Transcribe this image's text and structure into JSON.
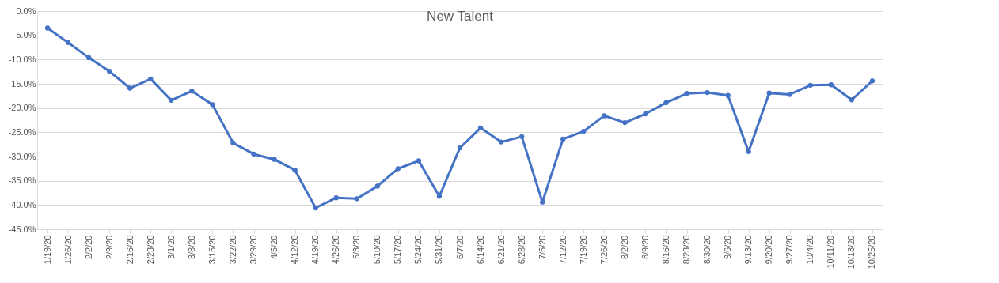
{
  "chart_data": {
    "type": "line",
    "title": "New Talent",
    "categories": [
      "1/19/20",
      "1/26/20",
      "2/2/20",
      "2/9/20",
      "2/16/20",
      "2/23/20",
      "3/1/20",
      "3/8/20",
      "3/15/20",
      "3/22/20",
      "3/29/20",
      "4/5/20",
      "4/12/20",
      "4/19/20",
      "4/26/20",
      "5/3/20",
      "5/10/20",
      "5/17/20",
      "5/24/20",
      "5/31/20",
      "6/7/20",
      "6/14/20",
      "6/21/20",
      "6/28/20",
      "7/5/20",
      "7/12/20",
      "7/19/20",
      "7/26/20",
      "8/2/20",
      "8/9/20",
      "8/16/20",
      "8/23/20",
      "8/30/20",
      "9/6/20",
      "9/13/20",
      "9/20/20",
      "9/27/20",
      "10/4/20",
      "10/11/20",
      "10/18/20",
      "10/25/20"
    ],
    "series": [
      {
        "color": "#4472c4",
        "values": [
          -3.5,
          -6.5,
          -9.6,
          -12.4,
          -15.9,
          -14.0,
          -18.4,
          -16.5,
          -19.3,
          -27.2,
          -29.5,
          -30.6,
          -32.8,
          -40.6,
          -38.5,
          -38.7,
          -36.1,
          -32.5,
          -30.9,
          -38.2,
          -28.2,
          -24.1,
          -27.0,
          -25.9,
          -39.4,
          -26.4,
          -24.8,
          -21.6,
          -23.0,
          -21.2,
          -18.9,
          -17.0,
          -16.8,
          -17.4,
          -29.0,
          -16.9,
          -17.2,
          -15.3,
          -15.2,
          -18.3,
          -14.4
        ]
      }
    ],
    "ylim": [
      -45,
      0
    ],
    "yticks": [
      {
        "value": 0,
        "label": "0.0%"
      },
      {
        "value": -5,
        "label": "-5.0%"
      },
      {
        "value": -10,
        "label": "-10.0%"
      },
      {
        "value": -15,
        "label": "-15.0%"
      },
      {
        "value": -20,
        "label": "-20.0%"
      },
      {
        "value": -25,
        "label": "-25.0%"
      },
      {
        "value": -30,
        "label": "-30.0%"
      },
      {
        "value": -35,
        "label": "-35.0%"
      },
      {
        "value": -40,
        "label": "-40.0%"
      },
      {
        "value": -45,
        "label": "-45.0%"
      }
    ],
    "grid": "y",
    "marker": "circle",
    "line_style": "solid"
  }
}
